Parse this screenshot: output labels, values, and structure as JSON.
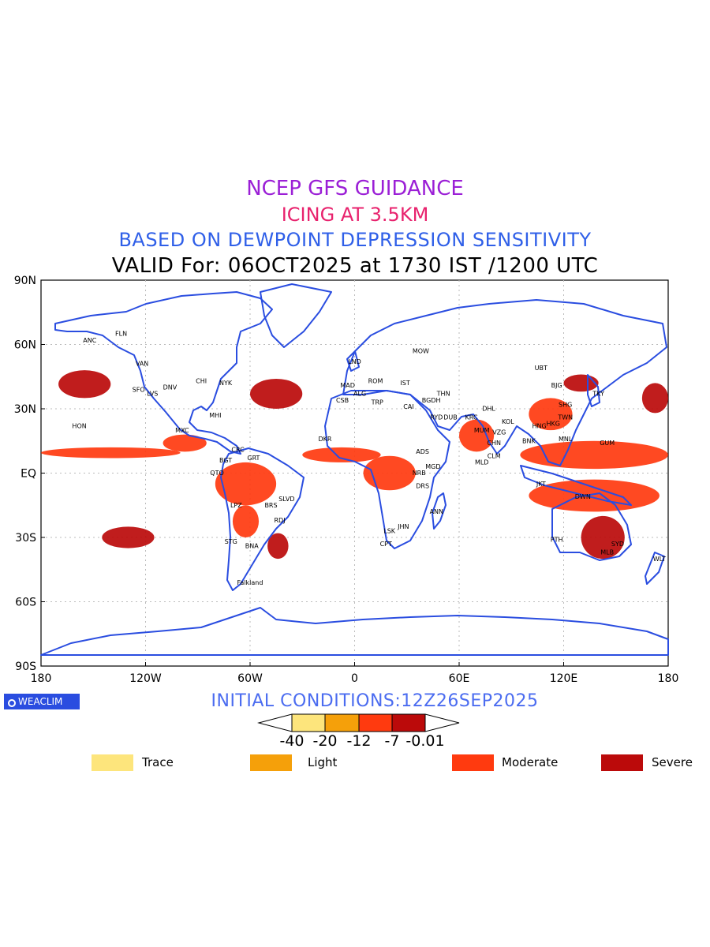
{
  "header": {
    "line1": "NCEP GFS GUIDANCE",
    "line2": "ICING AT 3.5KM",
    "line3": "BASED ON DEWPOINT DEPRESSION SENSITIVITY",
    "line4": "VALID For: 06OCT2025 at 1730 IST /1200 UTC"
  },
  "map": {
    "lat_labels": [
      "90N",
      "60N",
      "30N",
      "EQ",
      "30S",
      "60S",
      "90S"
    ],
    "lon_labels": [
      "180",
      "120W",
      "60W",
      "0",
      "60E",
      "120E",
      "180"
    ],
    "coastline_color": "#2a4de0",
    "stations": [
      {
        "name": "ANC",
        "lon": -152,
        "lat": 61
      },
      {
        "name": "FLN",
        "lon": -134,
        "lat": 64
      },
      {
        "name": "VAN",
        "lon": -122,
        "lat": 50
      },
      {
        "name": "SFO",
        "lon": -124,
        "lat": 38
      },
      {
        "name": "LVS",
        "lon": -116,
        "lat": 36
      },
      {
        "name": "DNV",
        "lon": -106,
        "lat": 39
      },
      {
        "name": "CHI",
        "lon": -88,
        "lat": 42
      },
      {
        "name": "NYK",
        "lon": -74,
        "lat": 41
      },
      {
        "name": "MHI",
        "lon": -80,
        "lat": 26
      },
      {
        "name": "HON",
        "lon": -158,
        "lat": 21
      },
      {
        "name": "MXC",
        "lon": -99,
        "lat": 19
      },
      {
        "name": "CRC",
        "lon": -67,
        "lat": 10
      },
      {
        "name": "GRT",
        "lon": -58,
        "lat": 6
      },
      {
        "name": "BGT",
        "lon": -74,
        "lat": 5
      },
      {
        "name": "QTO",
        "lon": -79,
        "lat": -1
      },
      {
        "name": "LPZ",
        "lon": -68,
        "lat": -16
      },
      {
        "name": "BRS",
        "lon": -48,
        "lat": -16
      },
      {
        "name": "SLVD",
        "lon": -39,
        "lat": -13
      },
      {
        "name": "RDJ",
        "lon": -43,
        "lat": -23
      },
      {
        "name": "STG",
        "lon": -71,
        "lat": -33
      },
      {
        "name": "BNA",
        "lon": -59,
        "lat": -35
      },
      {
        "name": "Falkland",
        "lon": -60,
        "lat": -52
      },
      {
        "name": "MOW",
        "lon": 38,
        "lat": 56
      },
      {
        "name": "LND",
        "lon": 0,
        "lat": 51
      },
      {
        "name": "MAD",
        "lon": -4,
        "lat": 40
      },
      {
        "name": "ALG",
        "lon": 3,
        "lat": 36
      },
      {
        "name": "CSB",
        "lon": -7,
        "lat": 33
      },
      {
        "name": "TRP",
        "lon": 13,
        "lat": 32
      },
      {
        "name": "ROM",
        "lon": 12,
        "lat": 42
      },
      {
        "name": "IST",
        "lon": 29,
        "lat": 41
      },
      {
        "name": "CAI",
        "lon": 31,
        "lat": 30
      },
      {
        "name": "BGDH",
        "lon": 44,
        "lat": 33
      },
      {
        "name": "THN",
        "lon": 51,
        "lat": 36
      },
      {
        "name": "RYD",
        "lon": 47,
        "lat": 25
      },
      {
        "name": "DUB",
        "lon": 55,
        "lat": 25
      },
      {
        "name": "KRC",
        "lon": 67,
        "lat": 25
      },
      {
        "name": "DHL",
        "lon": 77,
        "lat": 29
      },
      {
        "name": "MUM",
        "lon": 73,
        "lat": 19
      },
      {
        "name": "KOL",
        "lon": 88,
        "lat": 23
      },
      {
        "name": "CHN",
        "lon": 80,
        "lat": 13
      },
      {
        "name": "VZG",
        "lon": 83,
        "lat": 18
      },
      {
        "name": "CLM",
        "lon": 80,
        "lat": 7
      },
      {
        "name": "MLD",
        "lon": 73,
        "lat": 4
      },
      {
        "name": "DKR",
        "lon": -17,
        "lat": 15
      },
      {
        "name": "ADS",
        "lon": 39,
        "lat": 9
      },
      {
        "name": "MGD",
        "lon": 45,
        "lat": 2
      },
      {
        "name": "NRB",
        "lon": 37,
        "lat": -1
      },
      {
        "name": "DRS",
        "lon": 39,
        "lat": -7
      },
      {
        "name": "ANN",
        "lon": 47,
        "lat": -19
      },
      {
        "name": "JHN",
        "lon": 28,
        "lat": -26
      },
      {
        "name": "CPT",
        "lon": 18,
        "lat": -34
      },
      {
        "name": "LSK",
        "lon": 20,
        "lat": -28
      },
      {
        "name": "BNK",
        "lon": 100,
        "lat": 14
      },
      {
        "name": "HNG",
        "lon": 106,
        "lat": 21
      },
      {
        "name": "HKG",
        "lon": 114,
        "lat": 22
      },
      {
        "name": "TWN",
        "lon": 121,
        "lat": 25
      },
      {
        "name": "SHG",
        "lon": 121,
        "lat": 31
      },
      {
        "name": "BJG",
        "lon": 116,
        "lat": 40
      },
      {
        "name": "UBT",
        "lon": 107,
        "lat": 48
      },
      {
        "name": "TKY",
        "lon": 140,
        "lat": 36
      },
      {
        "name": "MNL",
        "lon": 121,
        "lat": 15
      },
      {
        "name": "GUM",
        "lon": 145,
        "lat": 13
      },
      {
        "name": "JKT",
        "lon": 107,
        "lat": -6
      },
      {
        "name": "DWN",
        "lon": 131,
        "lat": -12
      },
      {
        "name": "PTH",
        "lon": 116,
        "lat": -32
      },
      {
        "name": "SYD",
        "lon": 151,
        "lat": -34
      },
      {
        "name": "MLB",
        "lon": 145,
        "lat": -38
      },
      {
        "name": "WLT",
        "lon": 175,
        "lat": -41
      }
    ],
    "icing_regions": [
      {
        "level": "moderate",
        "lon": [
          -180,
          -100
        ],
        "lat": [
          7,
          12
        ]
      },
      {
        "level": "moderate",
        "lon": [
          -110,
          -85
        ],
        "lat": [
          10,
          18
        ]
      },
      {
        "level": "moderate",
        "lon": [
          -80,
          -45
        ],
        "lat": [
          -15,
          5
        ]
      },
      {
        "level": "moderate",
        "lon": [
          -70,
          -55
        ],
        "lat": [
          -30,
          -15
        ]
      },
      {
        "level": "moderate",
        "lon": [
          -30,
          15
        ],
        "lat": [
          5,
          12
        ]
      },
      {
        "level": "moderate",
        "lon": [
          5,
          35
        ],
        "lat": [
          -8,
          8
        ]
      },
      {
        "level": "moderate",
        "lon": [
          60,
          80
        ],
        "lat": [
          10,
          25
        ]
      },
      {
        "level": "moderate",
        "lon": [
          95,
          180
        ],
        "lat": [
          2,
          15
        ]
      },
      {
        "level": "moderate",
        "lon": [
          100,
          125
        ],
        "lat": [
          20,
          35
        ]
      },
      {
        "level": "moderate",
        "lon": [
          100,
          175
        ],
        "lat": [
          -18,
          -3
        ]
      },
      {
        "level": "severe",
        "lon": [
          -170,
          -140
        ],
        "lat": [
          35,
          48
        ]
      },
      {
        "level": "severe",
        "lon": [
          -60,
          -30
        ],
        "lat": [
          30,
          44
        ]
      },
      {
        "level": "severe",
        "lon": [
          -50,
          -38
        ],
        "lat": [
          -40,
          -28
        ]
      },
      {
        "level": "severe",
        "lon": [
          -145,
          -115
        ],
        "lat": [
          -35,
          -25
        ]
      },
      {
        "level": "severe",
        "lon": [
          165,
          180
        ],
        "lat": [
          28,
          42
        ]
      },
      {
        "level": "severe",
        "lon": [
          120,
          140
        ],
        "lat": [
          38,
          46
        ]
      },
      {
        "level": "severe",
        "lon": [
          130,
          155
        ],
        "lat": [
          -40,
          -20
        ]
      }
    ]
  },
  "footer": {
    "logo_text": "WEACLIM",
    "initial_conditions": "INITIAL CONDITIONS:12Z26SEP2025",
    "colorbar_ticks": [
      "-40",
      "-20",
      "-12",
      "-7",
      "-0.01"
    ],
    "colorbar_colors": [
      "#fde57c",
      "#f5a00a",
      "#ff3a0f",
      "#bb0a0a"
    ],
    "legend": [
      {
        "label": "Trace",
        "color": "#fde57c"
      },
      {
        "label": "Light",
        "color": "#f5a00a"
      },
      {
        "label": "Moderate",
        "color": "#ff3a0f"
      },
      {
        "label": "Severe",
        "color": "#bb0a0a"
      }
    ]
  }
}
